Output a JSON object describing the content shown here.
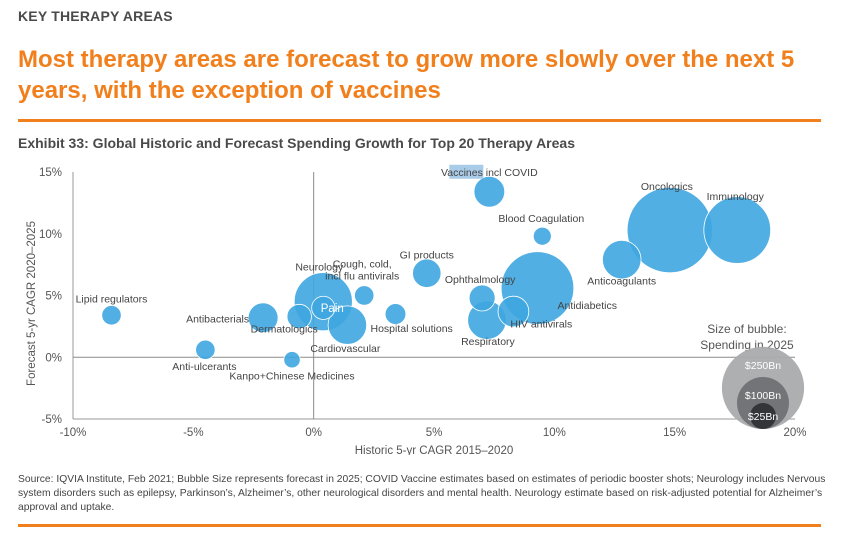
{
  "header": {
    "kicker": "KEY THERAPY AREAS",
    "headline": "Most therapy areas are forecast to grow more slowly over the next 5 years, with the exception of vaccines"
  },
  "exhibit_title": "Exhibit 33: Global Historic and Forecast Spending Growth for Top 20 Therapy Areas",
  "colors": {
    "accent": "#f07f1c",
    "bubble": "#3ea6e0",
    "legend_outer": "#a9abad",
    "legend_mid": "#6f7174",
    "legend_inner": "#2f3236",
    "highlight": "#a8cbe8"
  },
  "chart_data": {
    "type": "scatter",
    "xlabel": "Historic 5-yr CAGR 2015–2020",
    "ylabel": "Forecast 5-yr CAGR 2020–2025",
    "xlim": [
      -10,
      20
    ],
    "ylim": [
      -5,
      15
    ],
    "xticks": [
      "-10%",
      "-5%",
      "0%",
      "5%",
      "10%",
      "15%",
      "20%"
    ],
    "yticks": [
      "-5%",
      "0%",
      "5%",
      "10%",
      "15%"
    ],
    "grid": false,
    "size_legend": {
      "title_line1": "Size of bubble:",
      "title_line2": "Spending in 2025",
      "labels": [
        "$250Bn",
        "$100Bn",
        "$25Bn"
      ],
      "values": [
        250,
        100,
        25
      ]
    },
    "points": [
      {
        "name": "Vaccines incl COVID",
        "x": 7.3,
        "y": 13.4,
        "size": 35,
        "highlight": true
      },
      {
        "name": "Oncologics",
        "x": 14.8,
        "y": 10.3,
        "size": 270
      },
      {
        "name": "Immunology",
        "x": 17.6,
        "y": 10.3,
        "size": 165
      },
      {
        "name": "Blood Coagulation",
        "x": 9.5,
        "y": 9.8,
        "size": 12
      },
      {
        "name": "Anticoagulants",
        "x": 12.8,
        "y": 7.9,
        "size": 55
      },
      {
        "name": "GI products",
        "x": 4.7,
        "y": 6.8,
        "size": 30
      },
      {
        "name": "Ophthalmology",
        "x": 7.0,
        "y": 4.8,
        "size": 25
      },
      {
        "name": "Antidiabetics",
        "x": 9.3,
        "y": 5.6,
        "size": 195
      },
      {
        "name": "HIV antivirals",
        "x": 8.3,
        "y": 3.7,
        "size": 35
      },
      {
        "name": "Respiratory",
        "x": 7.2,
        "y": 3.0,
        "size": 55
      },
      {
        "name": "Cough, cold, incl flu antivirals",
        "x": 2.1,
        "y": 5.0,
        "size": 14
      },
      {
        "name": "Hospital solutions",
        "x": 3.4,
        "y": 3.5,
        "size": 16
      },
      {
        "name": "Neurology",
        "x": 0.4,
        "y": 4.5,
        "size": 125
      },
      {
        "name": "Pain",
        "x": 0.4,
        "y": 4.0,
        "size": 20
      },
      {
        "name": "Dermatologics",
        "x": -0.6,
        "y": 3.3,
        "size": 22
      },
      {
        "name": "Cardiovascular",
        "x": 1.4,
        "y": 2.6,
        "size": 55
      },
      {
        "name": "Antibacterials",
        "x": -2.1,
        "y": 3.2,
        "size": 33
      },
      {
        "name": "Lipid regulators",
        "x": -8.4,
        "y": 3.4,
        "size": 14
      },
      {
        "name": "Anti-ulcerants",
        "x": -4.5,
        "y": 0.6,
        "size": 14
      },
      {
        "name": "Kanpo+Chinese Medicines",
        "x": -0.9,
        "y": -0.2,
        "size": 10
      }
    ]
  },
  "source": "Source: IQVIA Institute, Feb 2021; Bubble Size represents forecast in 2025; COVID Vaccine estimates based on estimates of periodic booster shots; Neurology includes Nervous system disorders such as epilepsy, Parkinson’s, Alzheimer’s, other neurological disorders and mental health. Neurology estimate based on risk-adjusted potential for Alzheimer’s approval and uptake."
}
